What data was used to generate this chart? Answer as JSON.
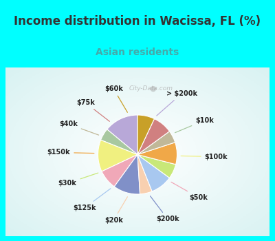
{
  "title": "Income distribution in Wacissa, FL (%)",
  "subtitle": "Asian residents",
  "title_color": "#333333",
  "subtitle_color": "#44aaaa",
  "bg_cyan": "#00FFFF",
  "labels": [
    "> $200k",
    "$10k",
    "$100k",
    "$50k",
    "$200k",
    "$20k",
    "$125k",
    "$30k",
    "$150k",
    "$40k",
    "$75k",
    "$60k"
  ],
  "sizes": [
    14,
    5,
    13,
    8,
    11,
    5,
    9,
    6,
    9,
    5,
    8,
    7
  ],
  "colors": [
    "#b8a8d8",
    "#a8c8a0",
    "#f0f080",
    "#f0a8b8",
    "#8090c8",
    "#f8d0b0",
    "#a8c8f0",
    "#c8e878",
    "#f0a848",
    "#c0b898",
    "#d08080",
    "#c8a028"
  ],
  "title_fontsize": 12,
  "subtitle_fontsize": 10,
  "watermark_text": "City-Data.com",
  "watermark_color": "#aaaaaa",
  "label_fontsize": 7,
  "label_color": "#222222"
}
